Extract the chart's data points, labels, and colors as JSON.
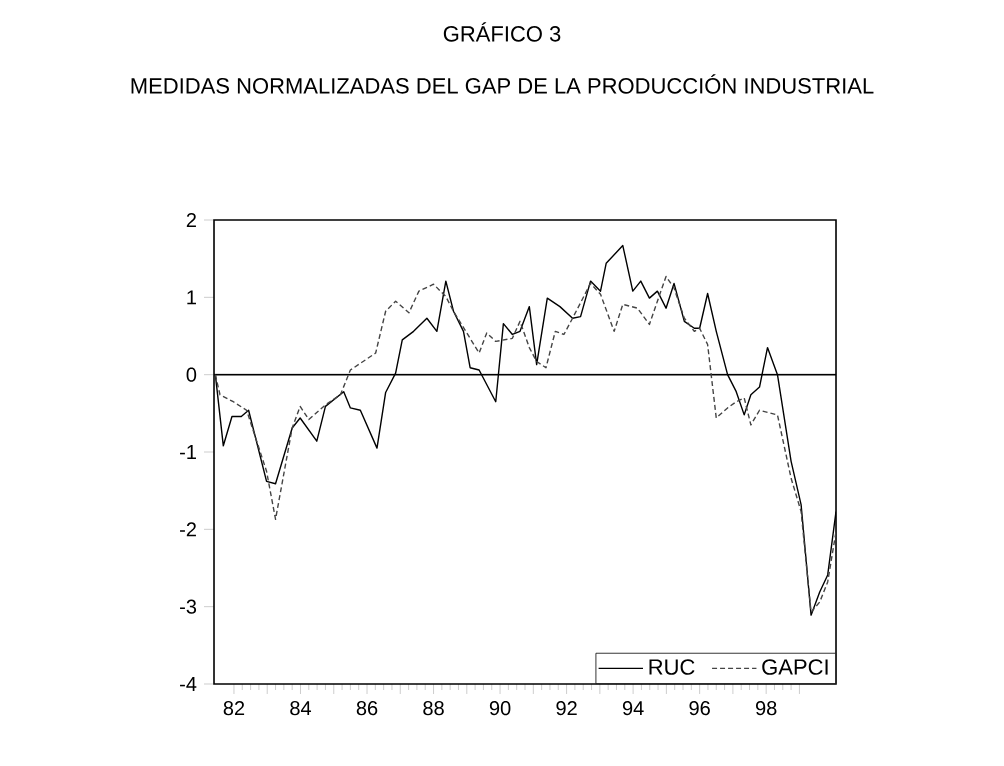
{
  "chart_data": {
    "type": "line",
    "title": "GRÁFICO 3",
    "subtitle": "MEDIDAS NORMALIZADAS DEL GAP DE LA PRODUCCIÓN INDUSTRIAL",
    "xlim": [
      81.4,
      100.1
    ],
    "ylim": [
      -4,
      2
    ],
    "yticks": [
      -4,
      -3,
      -2,
      -1,
      0,
      1,
      2
    ],
    "xticks": [
      {
        "value": 82,
        "label": "82"
      },
      {
        "value": 83,
        "label": null
      },
      {
        "value": 84,
        "label": "84"
      },
      {
        "value": 85,
        "label": null
      },
      {
        "value": 86,
        "label": "86"
      },
      {
        "value": 87,
        "label": null
      },
      {
        "value": 88,
        "label": "88"
      },
      {
        "value": 89,
        "label": null
      },
      {
        "value": 90,
        "label": "90"
      },
      {
        "value": 91,
        "label": null
      },
      {
        "value": 92,
        "label": "92"
      },
      {
        "value": 93,
        "label": null
      },
      {
        "value": 94,
        "label": "94"
      },
      {
        "value": 95,
        "label": null
      },
      {
        "value": 96,
        "label": "96"
      },
      {
        "value": 97,
        "label": null
      },
      {
        "value": 98,
        "label": "98"
      },
      {
        "value": 99,
        "label": null
      }
    ],
    "grid": false,
    "legend": "bottom right",
    "marker": "none",
    "ref_lines": [
      {
        "axis": "y",
        "value": 0,
        "color": "#000000",
        "line_style": "solid"
      }
    ],
    "series": [
      {
        "name": "RUC",
        "color": "#000000",
        "line_style": "solid",
        "x": [
          81.44,
          81.68,
          81.94,
          82.22,
          82.44,
          82.98,
          83.25,
          83.75,
          83.99,
          84.49,
          84.75,
          85.3,
          85.5,
          85.8,
          86.3,
          86.56,
          86.86,
          87.06,
          87.4,
          87.8,
          88.1,
          88.37,
          88.6,
          88.9,
          89.1,
          89.37,
          89.87,
          90.1,
          90.37,
          90.6,
          90.88,
          91.1,
          91.42,
          91.8,
          92.18,
          92.42,
          92.72,
          93.02,
          93.19,
          93.69,
          93.99,
          94.23,
          94.49,
          94.73,
          94.99,
          95.23,
          95.54,
          95.84,
          96.0,
          96.24,
          96.5,
          96.84,
          97.1,
          97.34,
          97.54,
          97.8,
          98.04,
          98.34,
          98.75,
          99.05,
          99.35,
          99.61,
          99.85,
          100.1
        ],
        "values": [
          0,
          -0.92,
          -0.54,
          -0.54,
          -0.46,
          -1.38,
          -1.41,
          -0.69,
          -0.56,
          -0.86,
          -0.41,
          -0.22,
          -0.43,
          -0.46,
          -0.95,
          -0.23,
          0.02,
          0.45,
          0.56,
          0.73,
          0.56,
          1.21,
          0.82,
          0.56,
          0.09,
          0.06,
          -0.35,
          0.66,
          0.52,
          0.56,
          0.88,
          0.13,
          0.99,
          0.88,
          0.73,
          0.75,
          1.21,
          1.08,
          1.44,
          1.67,
          1.08,
          1.21,
          0.99,
          1.08,
          0.86,
          1.18,
          0.69,
          0.6,
          0.6,
          1.05,
          0.56,
          0,
          -0.22,
          -0.52,
          -0.26,
          -0.16,
          0.35,
          0,
          -1.12,
          -1.68,
          -3.11,
          -2.81,
          -2.59,
          -1.77
        ]
      },
      {
        "name": "GAPCI",
        "color": "#444444",
        "line_style": "dashed",
        "x": [
          81.44,
          81.58,
          81.98,
          82.38,
          82.98,
          83.25,
          83.75,
          83.99,
          84.25,
          84.75,
          85.2,
          85.5,
          86.26,
          86.56,
          86.86,
          87.26,
          87.56,
          88.0,
          88.37,
          88.6,
          89.37,
          89.6,
          89.87,
          90.37,
          90.6,
          90.88,
          91.1,
          91.38,
          91.66,
          91.92,
          92.18,
          92.72,
          93.02,
          93.43,
          93.69,
          94.13,
          94.49,
          94.73,
          94.99,
          95.23,
          95.54,
          95.84,
          96.0,
          96.24,
          96.5,
          96.84,
          97.1,
          97.34,
          97.54,
          97.8,
          98.34,
          98.75,
          99.05,
          99.35,
          99.61,
          99.85,
          100.1
        ],
        "values": [
          0,
          -0.26,
          -0.35,
          -0.46,
          -1.25,
          -1.87,
          -0.69,
          -0.41,
          -0.58,
          -0.39,
          -0.26,
          0.06,
          0.28,
          0.82,
          0.95,
          0.8,
          1.08,
          1.17,
          1.01,
          0.82,
          0.28,
          0.54,
          0.43,
          0.47,
          0.69,
          0.35,
          0.17,
          0.09,
          0.56,
          0.52,
          0.73,
          1.18,
          1.04,
          0.56,
          0.91,
          0.86,
          0.65,
          0.95,
          1.27,
          1.12,
          0.73,
          0.56,
          0.6,
          0.39,
          -0.56,
          -0.43,
          -0.35,
          -0.3,
          -0.65,
          -0.46,
          -0.52,
          -1.34,
          -1.77,
          -3.07,
          -2.94,
          -2.68,
          -2.03
        ]
      }
    ]
  }
}
